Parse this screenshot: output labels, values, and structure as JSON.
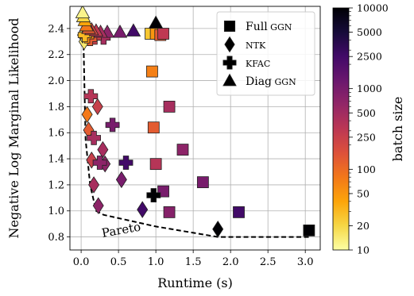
{
  "chart_data": {
    "type": "scatter",
    "xlabel": "Runtime (s)",
    "ylabel": "Negative Log Marginal Likelihood",
    "xlim": [
      -0.15,
      3.2
    ],
    "ylim": [
      0.7,
      2.57
    ],
    "xticks": [
      0.0,
      0.5,
      1.0,
      1.5,
      2.0,
      2.5,
      3.0
    ],
    "xtick_labels": [
      "0.0",
      "0.5",
      "1.0",
      "1.5",
      "2.0",
      "2.5",
      "3.0"
    ],
    "yticks": [
      0.8,
      1.0,
      1.2,
      1.4,
      1.6,
      1.8,
      2.0,
      2.2,
      2.4
    ],
    "ytick_labels": [
      "0.8",
      "1.0",
      "1.2",
      "1.4",
      "1.6",
      "1.8",
      "2.0",
      "2.2",
      "2.4"
    ],
    "grid": true,
    "legend": {
      "placement": "top-right",
      "entries": [
        {
          "label": "Full GGN",
          "marker": "square"
        },
        {
          "label": "NTK",
          "marker": "diamond"
        },
        {
          "label": "KFAC",
          "marker": "plus"
        },
        {
          "label": "Diag GGN",
          "marker": "triangle"
        }
      ]
    },
    "colorbar": {
      "label": "batch size",
      "scale": "log",
      "range": [
        10,
        10000
      ],
      "colormap": "inferno",
      "major_ticks": [
        10,
        20,
        50,
        100,
        250,
        500,
        1000,
        2500,
        5000,
        10000
      ],
      "major_tick_labels": [
        "10",
        "20",
        "50",
        "100",
        "250",
        "500",
        "1000",
        "2500",
        "5000",
        "10000"
      ]
    },
    "pareto": {
      "label": "Pareto",
      "style": "dashed",
      "points": [
        [
          0.02,
          2.5
        ],
        [
          0.03,
          2.35
        ],
        [
          0.06,
          1.55
        ],
        [
          0.12,
          1.2
        ],
        [
          0.2,
          1.0
        ],
        [
          0.3,
          0.97
        ],
        [
          1.0,
          0.88
        ],
        [
          1.83,
          0.8
        ],
        [
          3.05,
          0.8
        ]
      ]
    },
    "series": [
      {
        "name": "Full GGN",
        "marker": "square",
        "points": [
          {
            "x": 3.05,
            "y": 0.85,
            "batch": 10000
          },
          {
            "x": 2.11,
            "y": 0.99,
            "batch": 2500
          },
          {
            "x": 1.63,
            "y": 1.22,
            "batch": 1000
          },
          {
            "x": 1.36,
            "y": 1.47,
            "batch": 700
          },
          {
            "x": 1.18,
            "y": 1.8,
            "batch": 450
          },
          {
            "x": 1.1,
            "y": 1.15,
            "batch": 1000
          },
          {
            "x": 1.18,
            "y": 0.99,
            "batch": 800
          },
          {
            "x": 1.0,
            "y": 1.36,
            "batch": 350
          },
          {
            "x": 0.97,
            "y": 1.64,
            "batch": 130
          },
          {
            "x": 0.95,
            "y": 2.07,
            "batch": 70
          },
          {
            "x": 0.93,
            "y": 2.36,
            "batch": 25
          },
          {
            "x": 1.0,
            "y": 2.36,
            "batch": 50
          },
          {
            "x": 1.06,
            "y": 2.35,
            "batch": 130
          },
          {
            "x": 1.1,
            "y": 2.36,
            "batch": 300
          }
        ]
      },
      {
        "name": "NTK",
        "marker": "diamond",
        "points": [
          {
            "x": 1.83,
            "y": 0.86,
            "batch": 10000
          },
          {
            "x": 0.82,
            "y": 1.01,
            "batch": 2500
          },
          {
            "x": 0.54,
            "y": 1.24,
            "batch": 1000
          },
          {
            "x": 0.32,
            "y": 1.36,
            "batch": 700
          },
          {
            "x": 0.29,
            "y": 1.47,
            "batch": 450
          },
          {
            "x": 0.23,
            "y": 1.04,
            "batch": 700
          },
          {
            "x": 0.17,
            "y": 1.2,
            "batch": 450
          },
          {
            "x": 0.22,
            "y": 1.8,
            "batch": 250
          },
          {
            "x": 0.14,
            "y": 1.39,
            "batch": 250
          },
          {
            "x": 0.1,
            "y": 1.62,
            "batch": 130
          },
          {
            "x": 0.08,
            "y": 1.74,
            "batch": 80
          },
          {
            "x": 0.06,
            "y": 2.33,
            "batch": 25
          },
          {
            "x": 0.04,
            "y": 2.3,
            "batch": 15
          },
          {
            "x": 0.02,
            "y": 2.35,
            "batch": 10
          }
        ]
      },
      {
        "name": "KFAC",
        "marker": "plus",
        "points": [
          {
            "x": 0.97,
            "y": 1.12,
            "batch": 10000
          },
          {
            "x": 0.6,
            "y": 1.37,
            "batch": 2500
          },
          {
            "x": 0.42,
            "y": 1.66,
            "batch": 1000
          },
          {
            "x": 0.25,
            "y": 1.37,
            "batch": 700
          },
          {
            "x": 0.13,
            "y": 1.88,
            "batch": 350
          },
          {
            "x": 0.17,
            "y": 1.56,
            "batch": 450
          },
          {
            "x": 0.3,
            "y": 2.33,
            "batch": 450
          },
          {
            "x": 0.18,
            "y": 2.33,
            "batch": 250
          },
          {
            "x": 0.12,
            "y": 2.32,
            "batch": 130
          },
          {
            "x": 0.08,
            "y": 2.34,
            "batch": 60
          },
          {
            "x": 0.05,
            "y": 2.35,
            "batch": 30
          }
        ]
      },
      {
        "name": "Diag GGN",
        "marker": "triangle",
        "points": [
          {
            "x": 1.0,
            "y": 2.44,
            "batch": 10000
          },
          {
            "x": 0.7,
            "y": 2.38,
            "batch": 2500
          },
          {
            "x": 0.52,
            "y": 2.37,
            "batch": 1000
          },
          {
            "x": 0.35,
            "y": 2.37,
            "batch": 700
          },
          {
            "x": 0.26,
            "y": 2.37,
            "batch": 450
          },
          {
            "x": 0.2,
            "y": 2.38,
            "batch": 300
          },
          {
            "x": 0.14,
            "y": 2.39,
            "batch": 200
          },
          {
            "x": 0.1,
            "y": 2.4,
            "batch": 130
          },
          {
            "x": 0.07,
            "y": 2.42,
            "batch": 80
          },
          {
            "x": 0.05,
            "y": 2.46,
            "batch": 40
          },
          {
            "x": 0.03,
            "y": 2.49,
            "batch": 20
          },
          {
            "x": 0.02,
            "y": 2.52,
            "batch": 12
          }
        ]
      }
    ]
  }
}
